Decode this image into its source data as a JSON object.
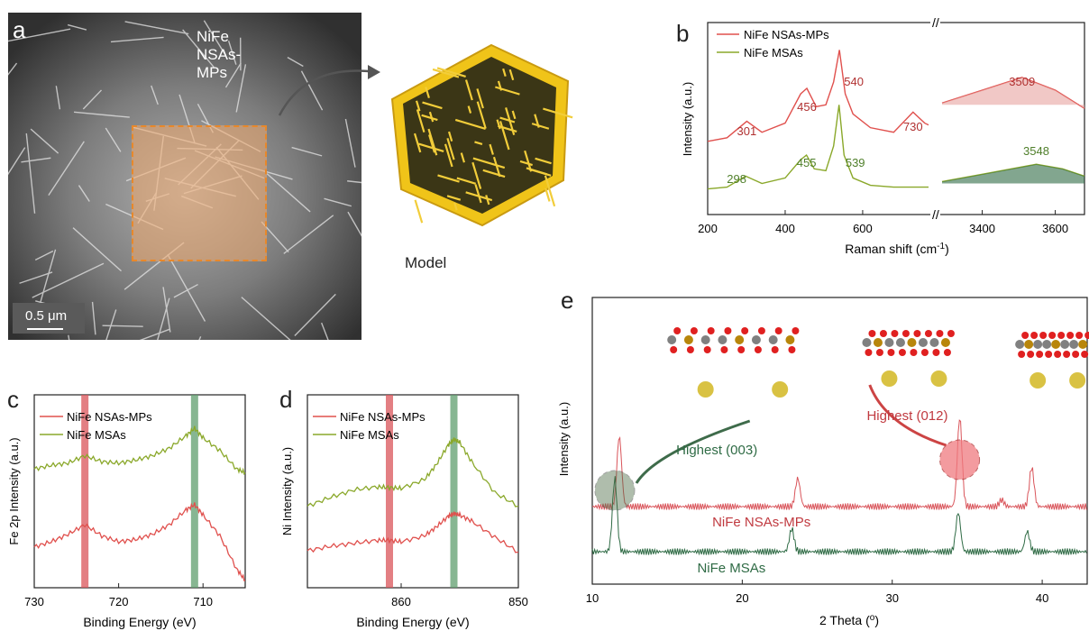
{
  "panel_a": {
    "label": "a",
    "sample_label": "NiFe NSAs-MPs",
    "scale_bar": "0.5 μm",
    "model_label": "Model"
  },
  "panel_b": {
    "label": "b"
  },
  "panel_c": {
    "label": "c"
  },
  "panel_d": {
    "label": "d"
  },
  "panel_e": {
    "label": "e"
  },
  "colors": {
    "red": "#e0504d",
    "green": "#8aa82a",
    "dark_green": "#2f6b45",
    "red_band": "#d9545a",
    "green_band": "#5f9e6e"
  },
  "chart_data": [
    {
      "panel": "b",
      "type": "line",
      "xlabel": "Raman shift (cm-1)",
      "ylabel": "Intensity (a.u.)",
      "x_ticks": [
        "200",
        "400",
        "600",
        "3400",
        "3600"
      ],
      "xlim_left": [
        200,
        770
      ],
      "xlim_right": [
        3290,
        3680
      ],
      "series": [
        {
          "name": "NiFe NSAs-MPs",
          "color": "#e0504d",
          "x": [
            200,
            250,
            301,
            340,
            400,
            440,
            456,
            480,
            505,
            525,
            540,
            555,
            575,
            620,
            680,
            730,
            760,
            770
          ],
          "y": [
            1.1,
            1.14,
            1.32,
            1.2,
            1.3,
            1.62,
            1.68,
            1.48,
            1.5,
            1.75,
            2.1,
            1.62,
            1.4,
            1.25,
            1.2,
            1.42,
            1.3,
            1.28
          ],
          "x_right": [
            3290,
            3400,
            3509,
            3600,
            3680
          ],
          "y_right": [
            1.52,
            1.66,
            1.8,
            1.66,
            1.46
          ]
        },
        {
          "name": "NiFe MSAs",
          "color": "#8aa82a",
          "x": [
            200,
            250,
            298,
            340,
            400,
            440,
            455,
            475,
            505,
            525,
            539,
            552,
            575,
            620,
            680,
            730,
            770
          ],
          "y": [
            0.58,
            0.6,
            0.72,
            0.64,
            0.7,
            0.9,
            0.95,
            0.8,
            0.78,
            1.05,
            1.5,
            0.95,
            0.7,
            0.62,
            0.6,
            0.6,
            0.6
          ],
          "x_right": [
            3290,
            3400,
            3548,
            3620,
            3680
          ],
          "y_right": [
            0.66,
            0.74,
            0.85,
            0.8,
            0.72
          ]
        }
      ],
      "annotations": [
        "301",
        "456",
        "540",
        "730",
        "3509",
        "298",
        "455",
        "539",
        "3548"
      ]
    },
    {
      "panel": "c",
      "type": "line",
      "xlabel": "Binding Energy (eV)",
      "ylabel": "Fe 2p Intensity (a.u.)",
      "x_ticks": [
        "730",
        "720",
        "710"
      ],
      "xlim": [
        730,
        705
      ],
      "markers": [
        {
          "x": 724,
          "color": "#d9545a"
        },
        {
          "x": 711,
          "color": "#5f9e6e"
        }
      ],
      "series": [
        {
          "name": "NiFe MSAs",
          "color": "#8aa82a",
          "x": [
            730,
            728,
            726,
            724,
            722,
            720,
            718,
            716,
            714,
            712,
            711,
            710,
            708,
            706,
            705
          ],
          "y": [
            1.6,
            1.65,
            1.68,
            1.78,
            1.7,
            1.68,
            1.72,
            1.78,
            1.88,
            2.05,
            2.15,
            2.02,
            1.85,
            1.6,
            1.55
          ]
        },
        {
          "name": "NiFe NSAs-MPs",
          "color": "#e0504d",
          "x": [
            730,
            728,
            726,
            724,
            722,
            720,
            718,
            716,
            714,
            712,
            711,
            710,
            708,
            706,
            705
          ],
          "y": [
            0.55,
            0.62,
            0.72,
            0.85,
            0.7,
            0.62,
            0.65,
            0.72,
            0.85,
            1.05,
            1.12,
            0.98,
            0.7,
            0.25,
            0.1
          ]
        }
      ],
      "legend": [
        "NiFe NSAs-MPs",
        "NiFe MSAs"
      ]
    },
    {
      "panel": "d",
      "type": "line",
      "xlabel": "Binding Energy (eV)",
      "ylabel": "Ni Intensity (a.u.)",
      "x_ticks": [
        "860",
        "850"
      ],
      "xlim": [
        868,
        850
      ],
      "markers": [
        {
          "x": 861,
          "color": "#d9545a"
        },
        {
          "x": 855.5,
          "color": "#5f9e6e"
        }
      ],
      "series": [
        {
          "name": "NiFe MSAs",
          "color": "#8aa82a",
          "x": [
            868,
            866,
            864,
            862,
            861,
            860,
            858,
            857,
            856,
            855.5,
            855,
            854,
            852,
            850
          ],
          "y": [
            1.1,
            1.22,
            1.32,
            1.36,
            1.35,
            1.34,
            1.46,
            1.66,
            1.92,
            2.0,
            1.96,
            1.7,
            1.28,
            1.1
          ]
        },
        {
          "name": "NiFe NSAs-MPs",
          "color": "#e0504d",
          "x": [
            868,
            866,
            864,
            862,
            861,
            860,
            858,
            857,
            856,
            855.5,
            855,
            854,
            852,
            850
          ],
          "y": [
            0.5,
            0.56,
            0.6,
            0.64,
            0.64,
            0.62,
            0.7,
            0.82,
            0.96,
            1.0,
            0.98,
            0.9,
            0.68,
            0.48
          ]
        }
      ],
      "legend": [
        "NiFe NSAs-MPs",
        "NiFe MSAs"
      ]
    },
    {
      "panel": "e",
      "type": "line",
      "xlabel": "2 Theta (o)",
      "ylabel": "Intensity (a.u.)",
      "x_ticks": [
        "10",
        "20",
        "30",
        "40"
      ],
      "xlim": [
        10,
        43
      ],
      "series": [
        {
          "name": "NiFe NSAs-MPs",
          "color": "#d9545a",
          "peaks": [
            [
              11.8,
              2.6
            ],
            [
              23.7,
              1.05
            ],
            [
              34.5,
              3.3
            ],
            [
              39.3,
              1.45
            ],
            [
              37.3,
              0.25
            ]
          ]
        },
        {
          "name": "NiFe MSAs",
          "color": "#2f6b45",
          "peaks": [
            [
              11.5,
              2.7
            ],
            [
              23.3,
              0.85
            ],
            [
              34.4,
              1.45
            ],
            [
              39.0,
              0.75
            ]
          ]
        }
      ],
      "annotations": [
        "Highest (003)",
        "Highest (012)",
        "NiFe NSAs-MPs",
        "NiFe MSAs"
      ]
    }
  ]
}
